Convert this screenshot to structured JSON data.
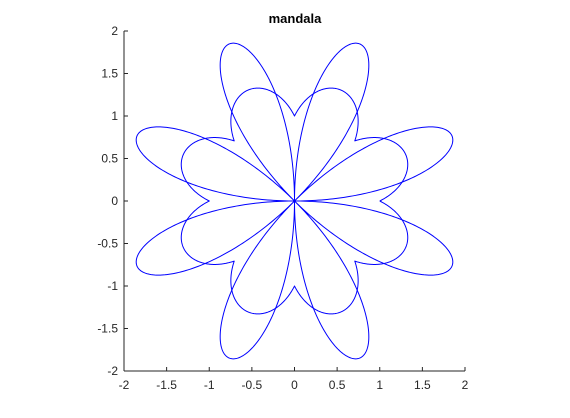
{
  "chart_data": {
    "type": "line",
    "title": "mandala",
    "xlabel": "",
    "ylabel": "",
    "xlim": [
      -2,
      2
    ],
    "ylim": [
      -2,
      2
    ],
    "xticks": [
      "-2",
      "-1.5",
      "-1",
      "-0.5",
      "0",
      "0.5",
      "1",
      "1.5",
      "2"
    ],
    "yticks": [
      "2",
      "1.5",
      "1",
      "0.5",
      "0",
      "-0.5",
      "-1",
      "-1.5",
      "-2"
    ],
    "grid": false,
    "legend": "none",
    "line_color": "#0000ff",
    "curves": [
      {
        "type": "polar",
        "r": "|sin(2θ)| + |cos(2θ)|",
        "theta_range": [
          0,
          6.2832
        ]
      },
      {
        "type": "polar",
        "r": "|2·sin(4θ)|",
        "theta_range": [
          0,
          6.2832
        ]
      }
    ]
  }
}
